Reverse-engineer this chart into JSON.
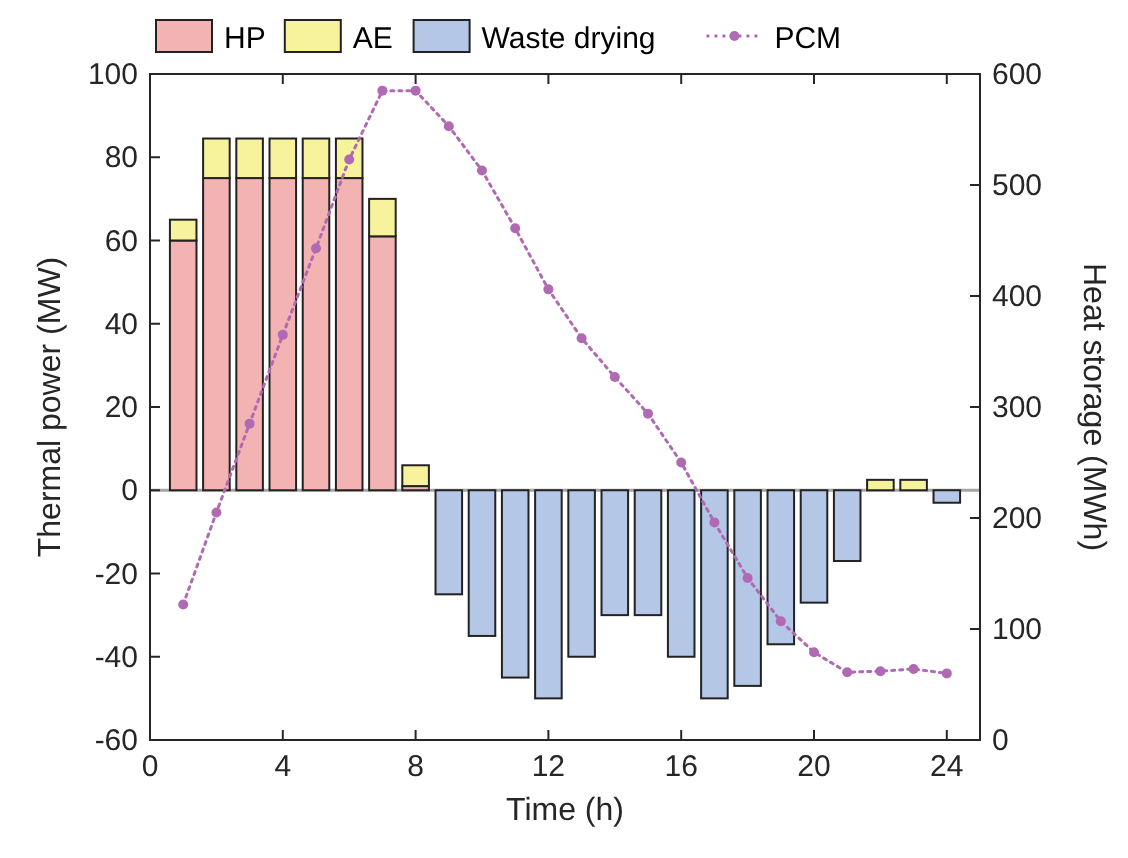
{
  "chart_data": {
    "type": "bar",
    "stacked": true,
    "xlabel": "Time (h)",
    "ylabel": "Thermal power (MW)",
    "y2label": "Heat storage (MWh)",
    "x": [
      1,
      2,
      3,
      4,
      5,
      6,
      7,
      8,
      9,
      10,
      11,
      12,
      13,
      14,
      15,
      16,
      17,
      18,
      19,
      20,
      21,
      22,
      23,
      24
    ],
    "series": [
      {
        "name": "HP",
        "color": "#f4b3b3",
        "values": [
          60,
          75,
          75,
          75,
          75,
          75,
          61,
          1,
          0,
          0,
          0,
          0,
          0,
          0,
          0,
          0,
          0,
          0,
          0,
          0,
          0,
          0,
          0,
          0
        ]
      },
      {
        "name": "AE",
        "color": "#f7f39c",
        "values": [
          5,
          9.5,
          9.5,
          9.5,
          9.5,
          9.5,
          9,
          5,
          0,
          0,
          0,
          0,
          0,
          0,
          0,
          0,
          0,
          0,
          0,
          0,
          0,
          2.5,
          2.5,
          0
        ]
      },
      {
        "name": "Waste drying",
        "color": "#b4c7e7",
        "values": [
          0,
          0,
          0,
          0,
          0,
          0,
          0,
          0,
          -25,
          -35,
          -45,
          -50,
          -40,
          -30,
          -30,
          -40,
          -50,
          -47,
          -37,
          -27,
          -17,
          0,
          0,
          -3
        ]
      },
      {
        "name": "PCM",
        "type": "line",
        "axis": "y2",
        "color": "#b06ab3",
        "marker": "circle",
        "line_style": "dotted",
        "values": [
          122,
          205,
          285,
          365,
          443,
          523,
          585,
          585,
          553,
          513,
          461,
          406,
          362,
          327,
          294,
          250,
          196,
          146,
          107,
          79,
          61,
          62,
          64,
          60
        ]
      }
    ],
    "xlim": [
      0,
      25
    ],
    "xticks": [
      0,
      4,
      8,
      12,
      16,
      20,
      24
    ],
    "ylim": [
      -60,
      100
    ],
    "yticks": [
      -60,
      -40,
      -20,
      0,
      20,
      40,
      60,
      80,
      100
    ],
    "y2lim": [
      0,
      600
    ],
    "y2ticks": [
      0,
      100,
      200,
      300,
      400,
      500,
      600
    ],
    "ref_lines": [
      {
        "axis": "y",
        "value": 0,
        "color": "#a6a6a6"
      }
    ],
    "legend": "top",
    "grid": false
  }
}
